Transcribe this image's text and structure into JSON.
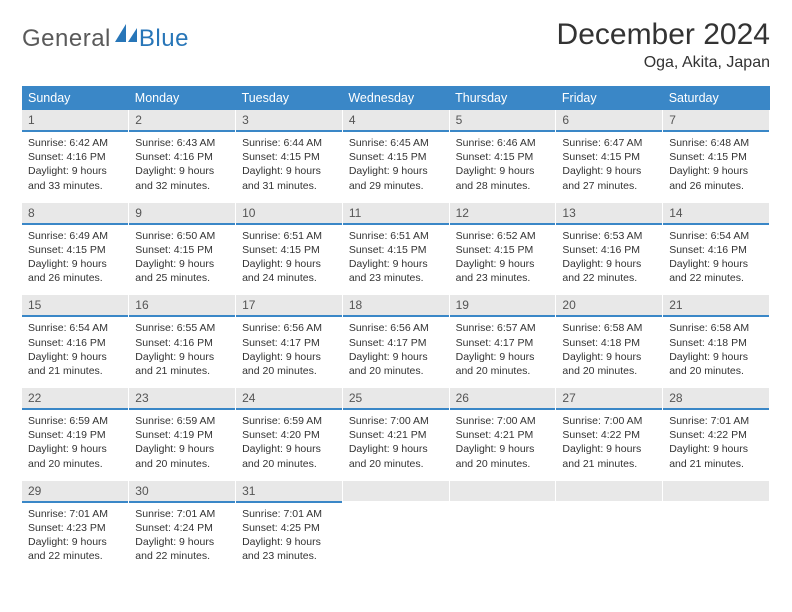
{
  "logo": {
    "text1": "General",
    "text2": "Blue"
  },
  "title": "December 2024",
  "location": "Oga, Akita, Japan",
  "colors": {
    "header_bg": "#3a87c7",
    "header_text": "#ffffff",
    "daynum_bg": "#e8e8e8",
    "daynum_border": "#3a87c7",
    "body_text": "#333333",
    "logo_gray": "#5a5a5a",
    "logo_blue": "#2876b8"
  },
  "fonts": {
    "title_size": 30,
    "location_size": 16,
    "header_size": 12.5,
    "body_size": 10.5
  },
  "weekdays": [
    "Sunday",
    "Monday",
    "Tuesday",
    "Wednesday",
    "Thursday",
    "Friday",
    "Saturday"
  ],
  "grid": [
    [
      {
        "n": "1",
        "sr": "6:42 AM",
        "ss": "4:16 PM",
        "dl": "9 hours and 33 minutes."
      },
      {
        "n": "2",
        "sr": "6:43 AM",
        "ss": "4:16 PM",
        "dl": "9 hours and 32 minutes."
      },
      {
        "n": "3",
        "sr": "6:44 AM",
        "ss": "4:15 PM",
        "dl": "9 hours and 31 minutes."
      },
      {
        "n": "4",
        "sr": "6:45 AM",
        "ss": "4:15 PM",
        "dl": "9 hours and 29 minutes."
      },
      {
        "n": "5",
        "sr": "6:46 AM",
        "ss": "4:15 PM",
        "dl": "9 hours and 28 minutes."
      },
      {
        "n": "6",
        "sr": "6:47 AM",
        "ss": "4:15 PM",
        "dl": "9 hours and 27 minutes."
      },
      {
        "n": "7",
        "sr": "6:48 AM",
        "ss": "4:15 PM",
        "dl": "9 hours and 26 minutes."
      }
    ],
    [
      {
        "n": "8",
        "sr": "6:49 AM",
        "ss": "4:15 PM",
        "dl": "9 hours and 26 minutes."
      },
      {
        "n": "9",
        "sr": "6:50 AM",
        "ss": "4:15 PM",
        "dl": "9 hours and 25 minutes."
      },
      {
        "n": "10",
        "sr": "6:51 AM",
        "ss": "4:15 PM",
        "dl": "9 hours and 24 minutes."
      },
      {
        "n": "11",
        "sr": "6:51 AM",
        "ss": "4:15 PM",
        "dl": "9 hours and 23 minutes."
      },
      {
        "n": "12",
        "sr": "6:52 AM",
        "ss": "4:15 PM",
        "dl": "9 hours and 23 minutes."
      },
      {
        "n": "13",
        "sr": "6:53 AM",
        "ss": "4:16 PM",
        "dl": "9 hours and 22 minutes."
      },
      {
        "n": "14",
        "sr": "6:54 AM",
        "ss": "4:16 PM",
        "dl": "9 hours and 22 minutes."
      }
    ],
    [
      {
        "n": "15",
        "sr": "6:54 AM",
        "ss": "4:16 PM",
        "dl": "9 hours and 21 minutes."
      },
      {
        "n": "16",
        "sr": "6:55 AM",
        "ss": "4:16 PM",
        "dl": "9 hours and 21 minutes."
      },
      {
        "n": "17",
        "sr": "6:56 AM",
        "ss": "4:17 PM",
        "dl": "9 hours and 20 minutes."
      },
      {
        "n": "18",
        "sr": "6:56 AM",
        "ss": "4:17 PM",
        "dl": "9 hours and 20 minutes."
      },
      {
        "n": "19",
        "sr": "6:57 AM",
        "ss": "4:17 PM",
        "dl": "9 hours and 20 minutes."
      },
      {
        "n": "20",
        "sr": "6:58 AM",
        "ss": "4:18 PM",
        "dl": "9 hours and 20 minutes."
      },
      {
        "n": "21",
        "sr": "6:58 AM",
        "ss": "4:18 PM",
        "dl": "9 hours and 20 minutes."
      }
    ],
    [
      {
        "n": "22",
        "sr": "6:59 AM",
        "ss": "4:19 PM",
        "dl": "9 hours and 20 minutes."
      },
      {
        "n": "23",
        "sr": "6:59 AM",
        "ss": "4:19 PM",
        "dl": "9 hours and 20 minutes."
      },
      {
        "n": "24",
        "sr": "6:59 AM",
        "ss": "4:20 PM",
        "dl": "9 hours and 20 minutes."
      },
      {
        "n": "25",
        "sr": "7:00 AM",
        "ss": "4:21 PM",
        "dl": "9 hours and 20 minutes."
      },
      {
        "n": "26",
        "sr": "7:00 AM",
        "ss": "4:21 PM",
        "dl": "9 hours and 20 minutes."
      },
      {
        "n": "27",
        "sr": "7:00 AM",
        "ss": "4:22 PM",
        "dl": "9 hours and 21 minutes."
      },
      {
        "n": "28",
        "sr": "7:01 AM",
        "ss": "4:22 PM",
        "dl": "9 hours and 21 minutes."
      }
    ],
    [
      {
        "n": "29",
        "sr": "7:01 AM",
        "ss": "4:23 PM",
        "dl": "9 hours and 22 minutes."
      },
      {
        "n": "30",
        "sr": "7:01 AM",
        "ss": "4:24 PM",
        "dl": "9 hours and 22 minutes."
      },
      {
        "n": "31",
        "sr": "7:01 AM",
        "ss": "4:25 PM",
        "dl": "9 hours and 23 minutes."
      },
      {
        "empty": true
      },
      {
        "empty": true
      },
      {
        "empty": true
      },
      {
        "empty": true
      }
    ]
  ],
  "labels": {
    "sunrise": "Sunrise:",
    "sunset": "Sunset:",
    "daylight": "Daylight:"
  }
}
